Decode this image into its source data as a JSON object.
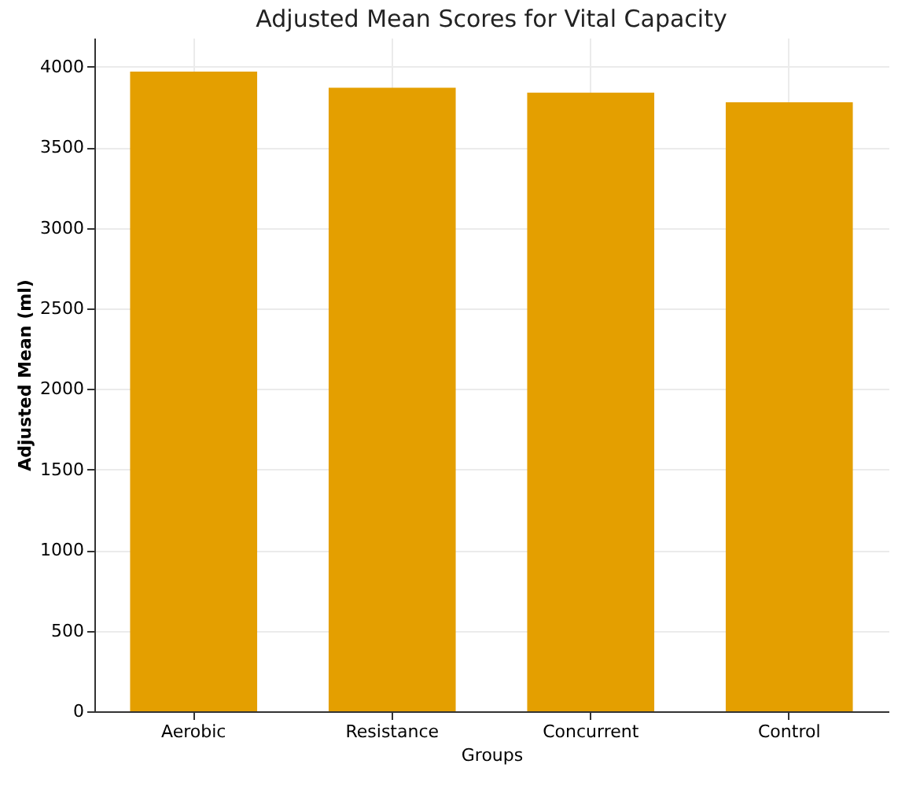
{
  "chart_data": {
    "type": "bar",
    "title": "Adjusted Mean Scores for Vital Capacity",
    "xlabel": "Groups",
    "ylabel": "Adjusted Mean (ml)",
    "categories": [
      "Aerobic",
      "Resistance",
      "Concurrent",
      "Control"
    ],
    "values": [
      3970,
      3870,
      3840,
      3780
    ],
    "color": "#e49f00",
    "ylim": [
      0,
      4180
    ],
    "yticks": [
      0,
      500,
      1000,
      1500,
      2000,
      2500,
      3000,
      3500,
      4000
    ],
    "grid": true
  }
}
